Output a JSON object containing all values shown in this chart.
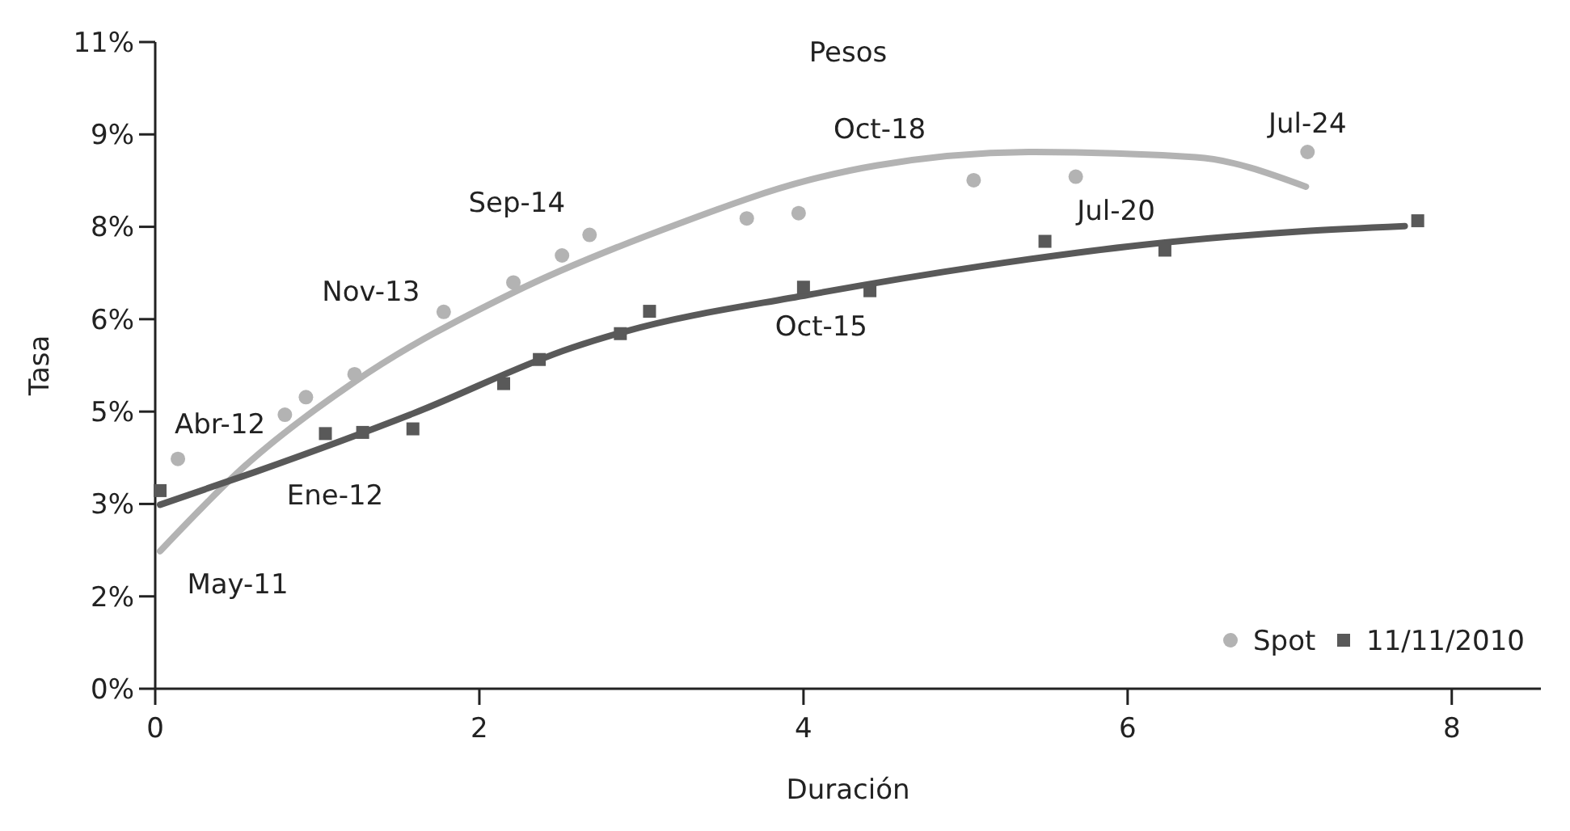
{
  "chart_data": {
    "type": "scatter",
    "title": "Pesos",
    "xlabel": "Duración",
    "ylabel": "Tasa",
    "xlim": [
      0,
      8.55
    ],
    "xticks": [
      0,
      2,
      4,
      6,
      8
    ],
    "ylim": [
      0,
      11
    ],
    "yticks": [
      {
        "value": 0,
        "label": "0%"
      },
      {
        "value": 1.571,
        "label": "2%"
      },
      {
        "value": 3.143,
        "label": "3%"
      },
      {
        "value": 4.714,
        "label": "5%"
      },
      {
        "value": 6.286,
        "label": "6%"
      },
      {
        "value": 7.857,
        "label": "8%"
      },
      {
        "value": 9.429,
        "label": "9%"
      },
      {
        "value": 11,
        "label": "11%"
      }
    ],
    "grid": false,
    "legend": "bottom right",
    "series": [
      {
        "name": "Spot",
        "marker": "circle",
        "color": "#b3b3b3",
        "x": [
          0.14,
          0.8,
          0.93,
          1.23,
          1.78,
          2.21,
          2.51,
          2.68,
          3.65,
          3.97,
          5.05,
          5.68,
          7.11
        ],
        "values": [
          3.91,
          4.66,
          4.96,
          5.35,
          6.41,
          6.91,
          7.37,
          7.72,
          8.0,
          8.09,
          8.65,
          8.71,
          9.13
        ]
      },
      {
        "name": "11/11/2010",
        "marker": "square",
        "color": "#595959",
        "x": [
          0.03,
          1.05,
          1.28,
          1.59,
          2.15,
          2.37,
          2.87,
          3.05,
          4.0,
          4.41,
          5.49,
          6.23,
          7.79
        ],
        "values": [
          3.37,
          4.34,
          4.36,
          4.42,
          5.19,
          5.6,
          6.04,
          6.42,
          6.83,
          6.77,
          7.61,
          7.46,
          7.96
        ]
      },
      {
        "type": "line",
        "marker": "none",
        "color": "#b3b3b3",
        "x": [
          0.03,
          0.55,
          1.23,
          2.21,
          3.23,
          4.03,
          4.45,
          5.43,
          6.42,
          7.1
        ],
        "values": [
          2.34,
          3.78,
          5.22,
          6.74,
          7.91,
          8.65,
          8.9,
          9.13,
          9.04,
          8.54
        ]
      },
      {
        "type": "line",
        "marker": "none",
        "color": "#595959",
        "x": [
          0.03,
          0.62,
          1.59,
          2.57,
          2.89,
          4.03,
          5.1,
          6.09,
          7.07,
          7.71
        ],
        "values": [
          3.13,
          3.69,
          4.68,
          5.8,
          6.07,
          6.7,
          7.19,
          7.55,
          7.78,
          7.87
        ]
      }
    ],
    "annotations": [
      {
        "text": "Abr-12",
        "x": 0.14,
        "y": 3.91
      },
      {
        "text": "Ene-12",
        "x": 1.05,
        "y": 4.34
      },
      {
        "text": "May-11",
        "x": 0.03,
        "y": 2.34
      },
      {
        "text": "Nov-13",
        "x": 1.78,
        "y": 6.41
      },
      {
        "text": "Sep-14",
        "x": 2.68,
        "y": 7.72
      },
      {
        "text": "Oct-15",
        "x": 4.0,
        "y": 6.83
      },
      {
        "text": "Oct-18",
        "x": 4.45,
        "y": 8.9
      },
      {
        "text": "Jul-20",
        "x": 5.49,
        "y": 7.61
      },
      {
        "text": "Jul-24",
        "x": 7.11,
        "y": 9.13
      }
    ]
  }
}
